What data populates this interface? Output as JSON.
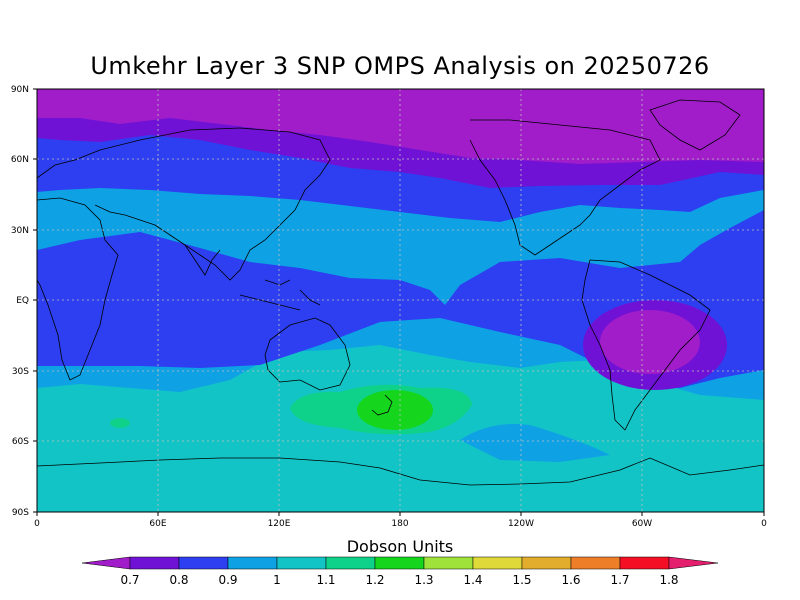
{
  "title": "Umkehr Layer 3 SNP OMPS Analysis on 20250726",
  "map": {
    "lat_ticks": [
      "90N",
      "60N",
      "30N",
      "EQ",
      "30S",
      "60S",
      "90S"
    ],
    "lon_ticks": [
      "0",
      "60E",
      "120E",
      "180",
      "120W",
      "60W",
      "0"
    ]
  },
  "colorbar": {
    "title": "Dobson Units",
    "labels": [
      "0.7",
      "0.8",
      "0.9",
      "1",
      "1.1",
      "1.2",
      "1.3",
      "1.4",
      "1.5",
      "1.6",
      "1.7",
      "1.8"
    ],
    "colors": [
      "#a01dc9",
      "#7012d6",
      "#2d3ff0",
      "#0ea2e5",
      "#13c4c6",
      "#0ed289",
      "#15d61d",
      "#9ee23a",
      "#e0d93a",
      "#e2ad2c",
      "#ef7e29",
      "#f40f24",
      "#e41f6e"
    ]
  },
  "chart_data": {
    "type": "heatmap",
    "title": "Umkehr Layer 3 SNP OMPS Analysis on 20250726",
    "xlabel": "",
    "ylabel": "",
    "x_range": [
      0,
      360
    ],
    "y_range": [
      -90,
      90
    ],
    "units": "Dobson Units",
    "levels": [
      0.7,
      0.8,
      0.9,
      1.0,
      1.1,
      1.2,
      1.3,
      1.4,
      1.5,
      1.6,
      1.7,
      1.8
    ],
    "features": [
      {
        "region": "north polar cap",
        "value_range": [
          0.7,
          0.8
        ]
      },
      {
        "region": "northern mid latitudes",
        "value_range": [
          0.8,
          0.9
        ]
      },
      {
        "region": "northern subtropics band",
        "value_range": [
          0.9,
          1.0
        ]
      },
      {
        "region": "tropics",
        "value_range": [
          0.8,
          0.9
        ]
      },
      {
        "region": "South America low",
        "value_range": [
          0.7,
          0.8
        ]
      },
      {
        "region": "southern mid latitudes",
        "value_range": [
          1.0,
          1.1
        ]
      },
      {
        "region": "south of Australia / Tasman sea",
        "value_range": [
          1.1,
          1.2
        ]
      },
      {
        "region": "New Zealand maximum",
        "value_range": [
          1.2,
          1.3
        ]
      },
      {
        "region": "southern high latitudes",
        "value_range": [
          1.0,
          1.1
        ]
      }
    ]
  }
}
